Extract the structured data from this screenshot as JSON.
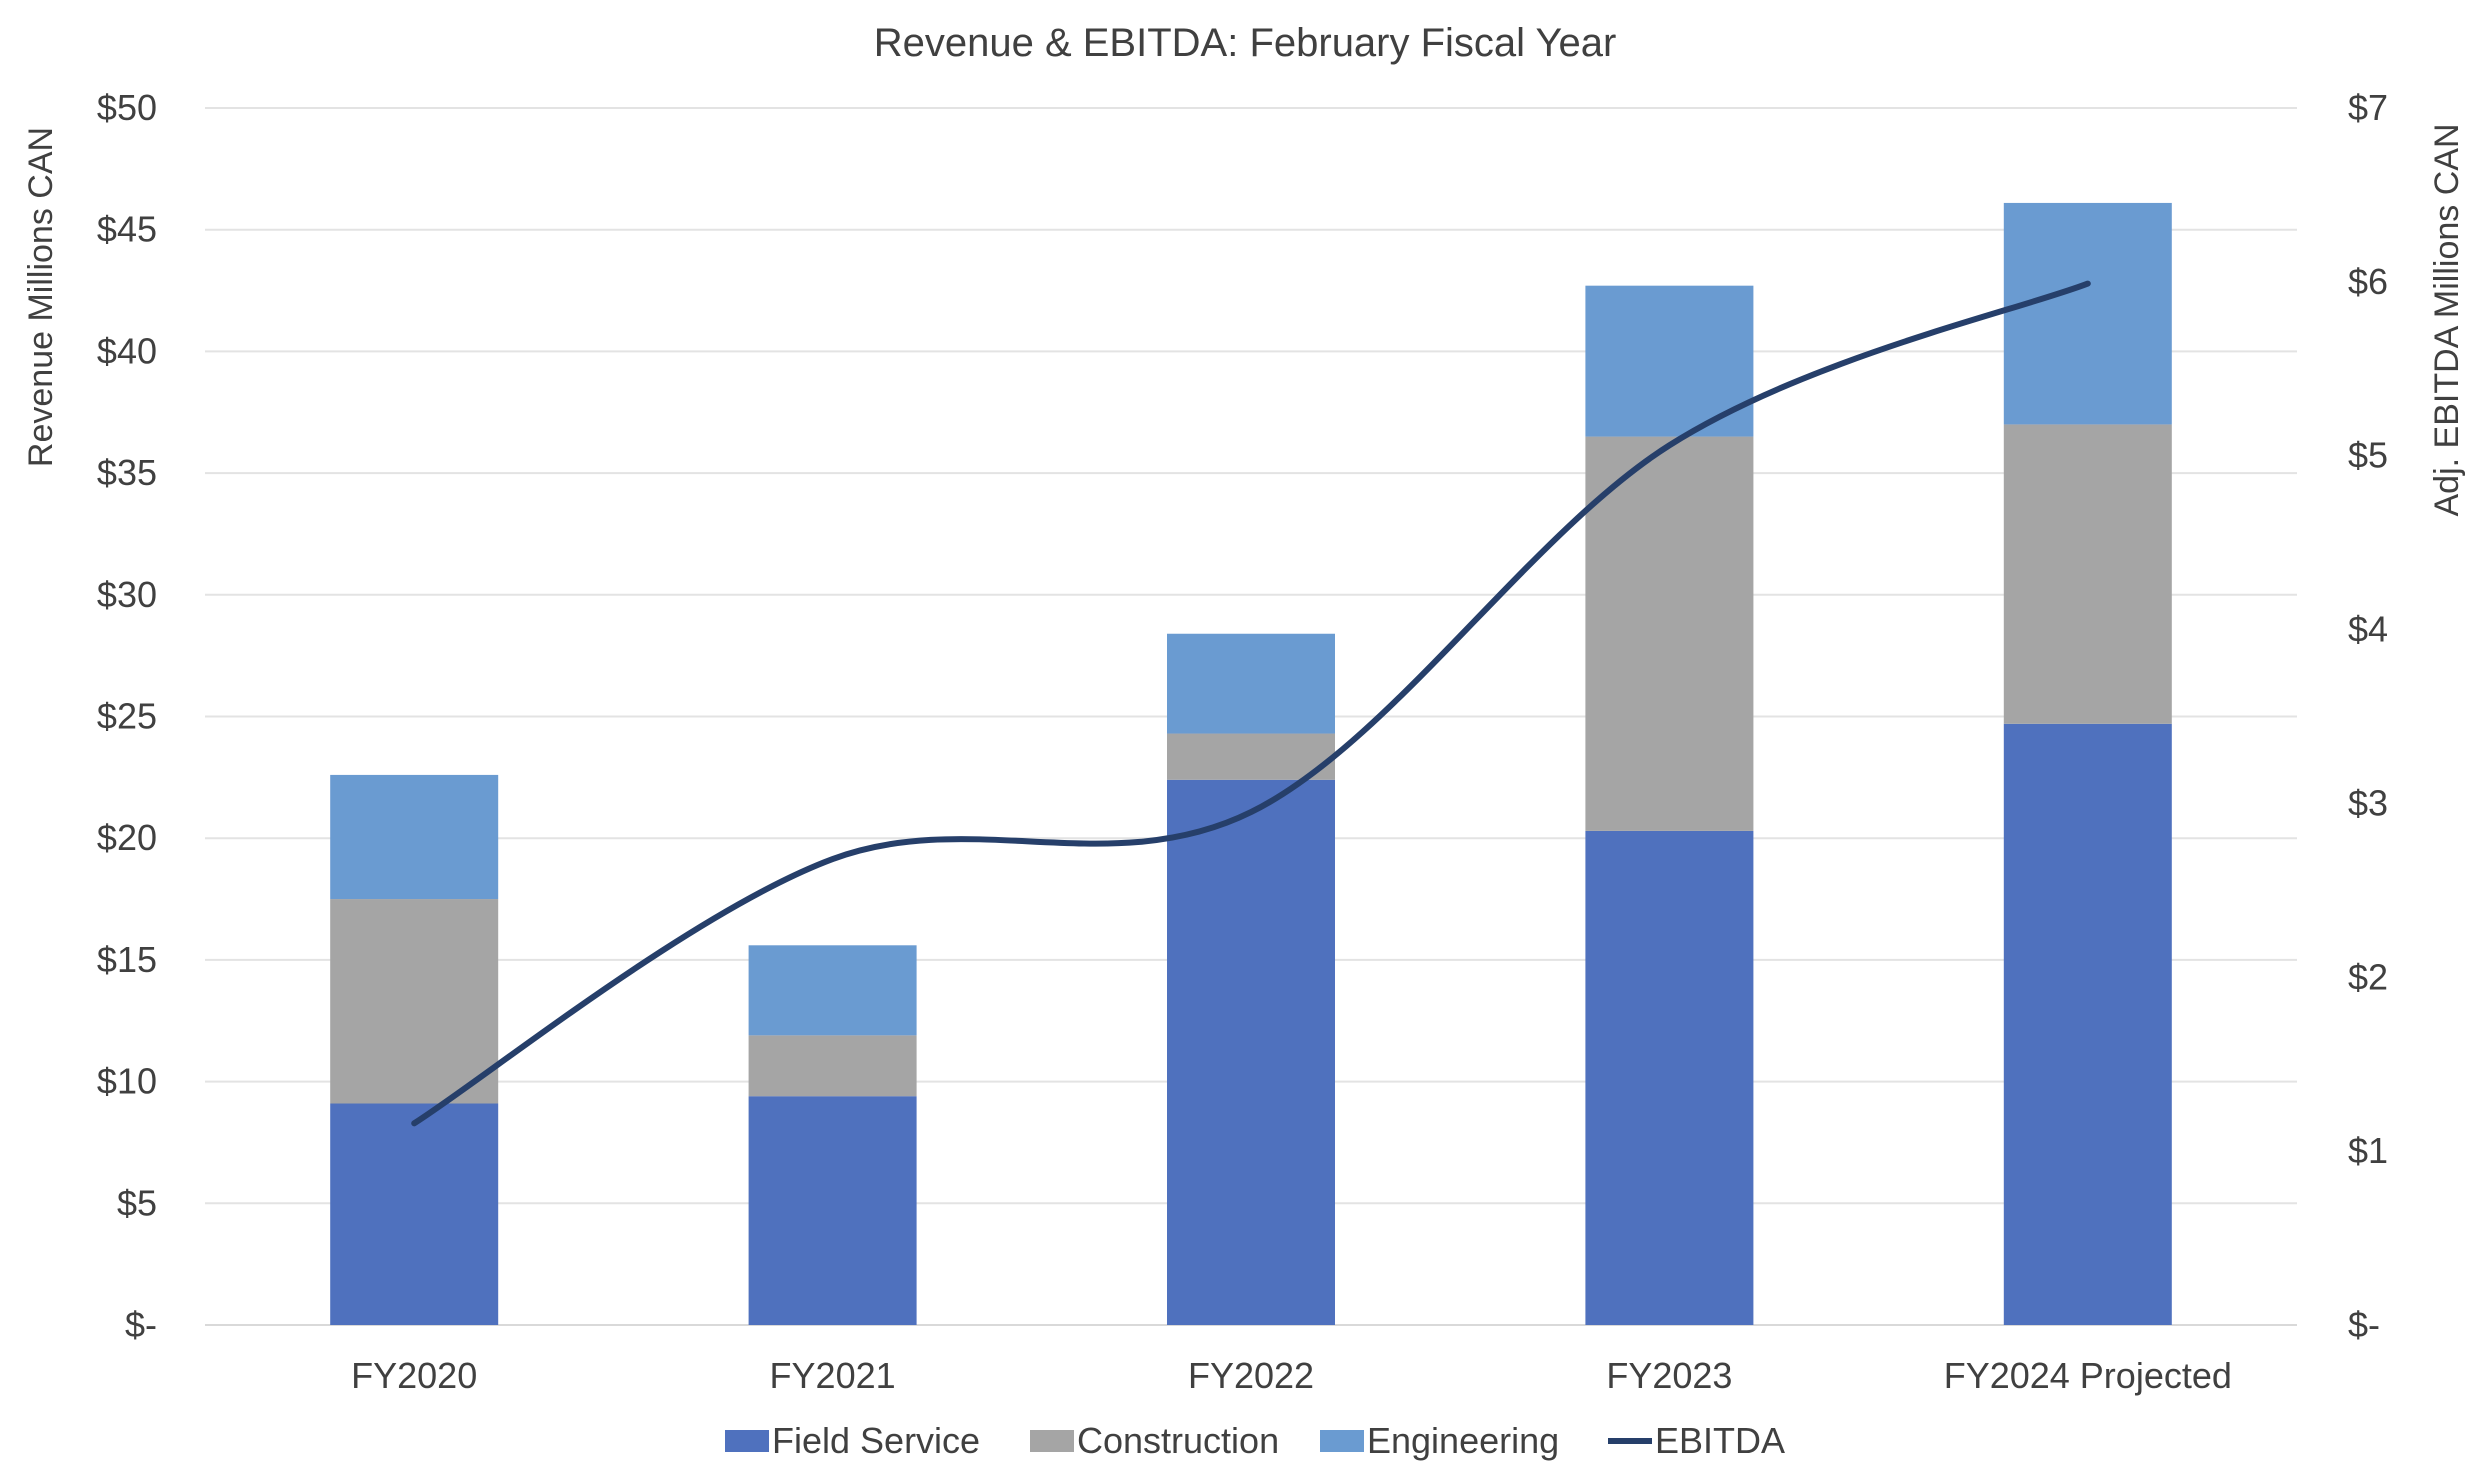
{
  "chart_data": {
    "type": "bar",
    "stacked": true,
    "title": "Revenue & EBITDA: February Fiscal Year",
    "categories": [
      "FY2020",
      "FY2021",
      "FY2022",
      "FY2023",
      "FY2024 Projected"
    ],
    "ylabel": "Revenue Millions CAN",
    "y2label": "Adj. EBITDA Millions CAN",
    "ylim": [
      0,
      50
    ],
    "y2lim": [
      0,
      7
    ],
    "yticks": [
      "$-",
      "$5",
      "$10",
      "$15",
      "$20",
      "$25",
      "$30",
      "$35",
      "$40",
      "$45",
      "$50"
    ],
    "y2ticks": [
      "$-",
      "$1",
      "$2",
      "$3",
      "$4",
      "$5",
      "$6",
      "$7"
    ],
    "grid": true,
    "legend_position": "bottom",
    "series": [
      {
        "name": "Field Service",
        "type": "bar",
        "axis": "left",
        "color": "#4f71be",
        "values": [
          9.1,
          9.4,
          22.4,
          20.3,
          24.7
        ]
      },
      {
        "name": "Construction",
        "type": "bar",
        "axis": "left",
        "color": "#a5a5a5",
        "values": [
          8.4,
          2.5,
          1.9,
          16.2,
          12.3
        ]
      },
      {
        "name": "Engineering",
        "type": "bar",
        "axis": "left",
        "color": "#6a9bd1",
        "values": [
          5.1,
          3.7,
          4.1,
          6.2,
          9.1
        ]
      },
      {
        "name": "EBITDA",
        "type": "line",
        "axis": "right",
        "color": "#263f6a",
        "values": [
          1.16,
          2.68,
          2.95,
          5.06,
          5.99
        ]
      }
    ]
  }
}
